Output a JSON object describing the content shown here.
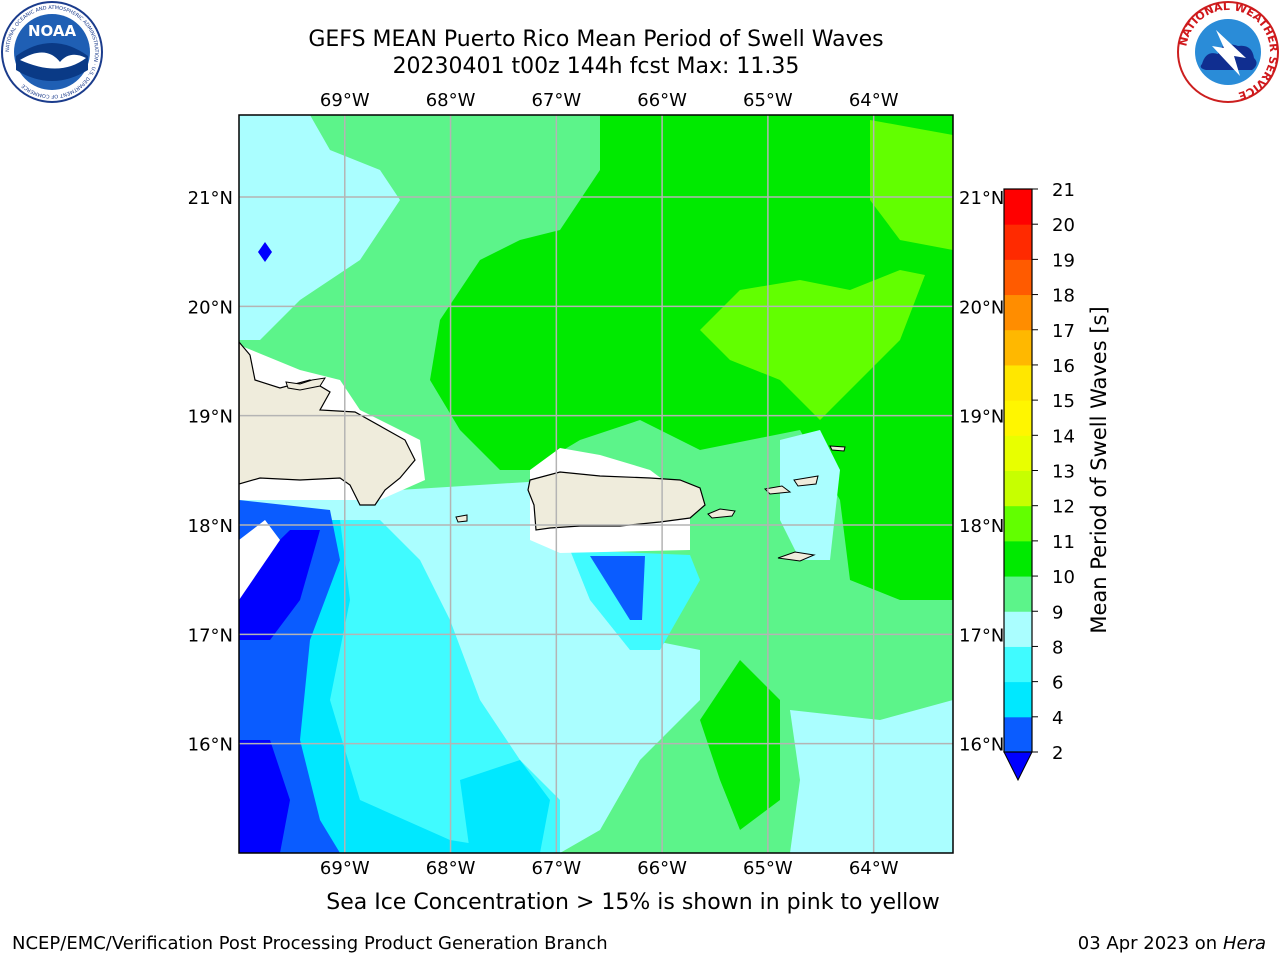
{
  "header": {
    "title_line1": "GEFS MEAN Puerto Rico Mean Period of Swell Waves",
    "title_line2": "20230401 t00z 144h fcst   Max: 11.35"
  },
  "logos": {
    "left_text": "NOAA",
    "left_ring_text": "NATIONAL OCEANIC AND ATMOSPHERIC ADMINISTRATION · U.S. DEPARTMENT OF COMMERCE",
    "right_ring_text": "NATIONAL WEATHER SERVICE"
  },
  "map": {
    "lon_labels": [
      "69°W",
      "68°W",
      "67°W",
      "66°W",
      "65°W",
      "64°W"
    ],
    "lat_labels": [
      "21°N",
      "20°N",
      "19°N",
      "18°N",
      "17°N",
      "16°N"
    ],
    "lon_values": [
      -69,
      -68,
      -67,
      -66,
      -65,
      -64
    ],
    "lat_values": [
      21,
      20,
      19,
      18,
      17,
      16
    ],
    "extent": {
      "lon_min": -70,
      "lon_max": -63.25,
      "lat_min": 15,
      "lat_max": 21.75
    },
    "colors": {
      "ocean_base": "#5cf48a",
      "land": "#efecdc",
      "grid": "#b4b4b4"
    }
  },
  "colorbar": {
    "label": "Mean Period of Swell Waves [s]",
    "ticks": [
      "2",
      "4",
      "6",
      "8",
      "9",
      "10",
      "11",
      "12",
      "13",
      "14",
      "15",
      "16",
      "17",
      "18",
      "19",
      "20",
      "21"
    ],
    "colors": [
      "#0a5cff",
      "#00e8ff",
      "#40fbff",
      "#aafeff",
      "#5cf48a",
      "#00ea00",
      "#62ff00",
      "#c7ff00",
      "#e8ff00",
      "#fff600",
      "#ffe700",
      "#ffb800",
      "#ff8d00",
      "#ff5b00",
      "#ff2a00",
      "#ff0000"
    ],
    "under_color": "#0000ff"
  },
  "footer": {
    "note": "Sea Ice Concentration > 15% is shown in pink to yellow",
    "left": "NCEP/EMC/Verification Post Processing Product Generation Branch",
    "right_prefix": "03 Apr 2023 on ",
    "right_machine": "Hera"
  }
}
